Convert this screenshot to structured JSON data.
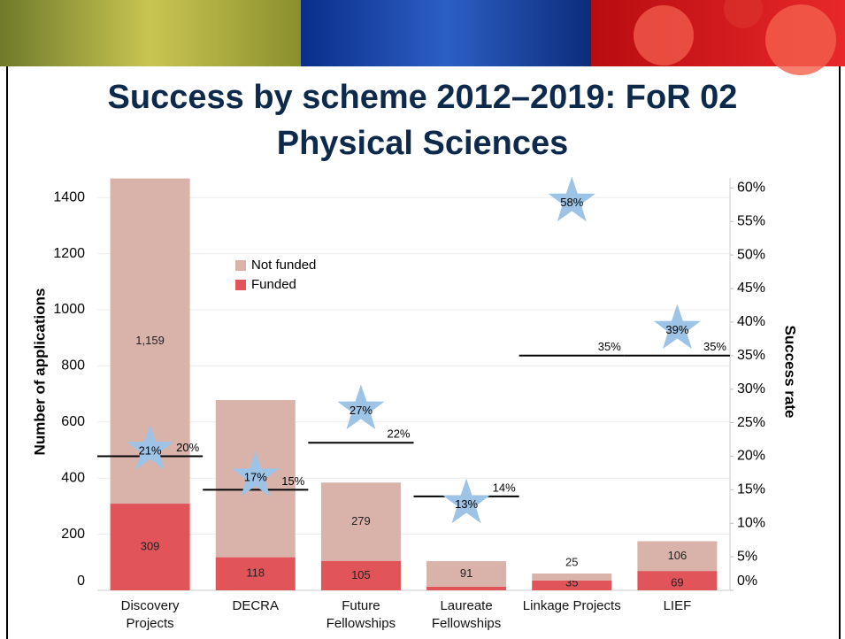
{
  "chart_data": {
    "type": "bar",
    "stacked": true,
    "title": "Success by scheme 2012–2019: FoR 02 Physical Sciences",
    "categories": [
      "Discovery Projects",
      "DECRA",
      "Future Fellowships",
      "Laureate Fellowships",
      "Linkage Projects",
      "LIEF"
    ],
    "series": [
      {
        "name": "Funded",
        "color": "#e0545a",
        "values": [
          309,
          118,
          105,
          13,
          35,
          69
        ]
      },
      {
        "name": "Not funded",
        "color": "#d9b2aa",
        "values": [
          1159,
          560,
          279,
          91,
          25,
          106
        ],
        "value_labels": [
          "1,159",
          "560",
          "279",
          "91",
          "25",
          "106"
        ]
      }
    ],
    "success_rate": {
      "axis": "y2",
      "marker": "star",
      "color": "#9dc3e6",
      "values": [
        21,
        17,
        27,
        13,
        58,
        39
      ],
      "value_labels": [
        "21%",
        "17%",
        "27%",
        "13%",
        "58%",
        "39%"
      ]
    },
    "benchmark": {
      "axis": "y2",
      "color": "#000000",
      "values": [
        20,
        15,
        22,
        14,
        35,
        35
      ],
      "value_labels": [
        "20%",
        "15%",
        "22%",
        "14%",
        "35%",
        "35%"
      ]
    },
    "ylabel": "Number of applications",
    "y2label": "Success rate",
    "ylim": [
      0,
      1470
    ],
    "yticks": [
      0,
      200,
      400,
      600,
      800,
      1000,
      1200,
      1400
    ],
    "y2lim": [
      0,
      61.5
    ],
    "y2ticks": [
      {
        "value": 0,
        "label": "0%"
      },
      {
        "value": 5,
        "label": "5%"
      },
      {
        "value": 10,
        "label": "10%"
      },
      {
        "value": 15,
        "label": "15%"
      },
      {
        "value": 20,
        "label": "20%"
      },
      {
        "value": 25,
        "label": "25%"
      },
      {
        "value": 30,
        "label": "30%"
      },
      {
        "value": 35,
        "label": "35%"
      },
      {
        "value": 40,
        "label": "40%"
      },
      {
        "value": 45,
        "label": "45%"
      },
      {
        "value": 50,
        "label": "50%"
      },
      {
        "value": 55,
        "label": "55%"
      },
      {
        "value": 60,
        "label": "60%"
      }
    ],
    "grid": true,
    "legend": "upper left"
  }
}
